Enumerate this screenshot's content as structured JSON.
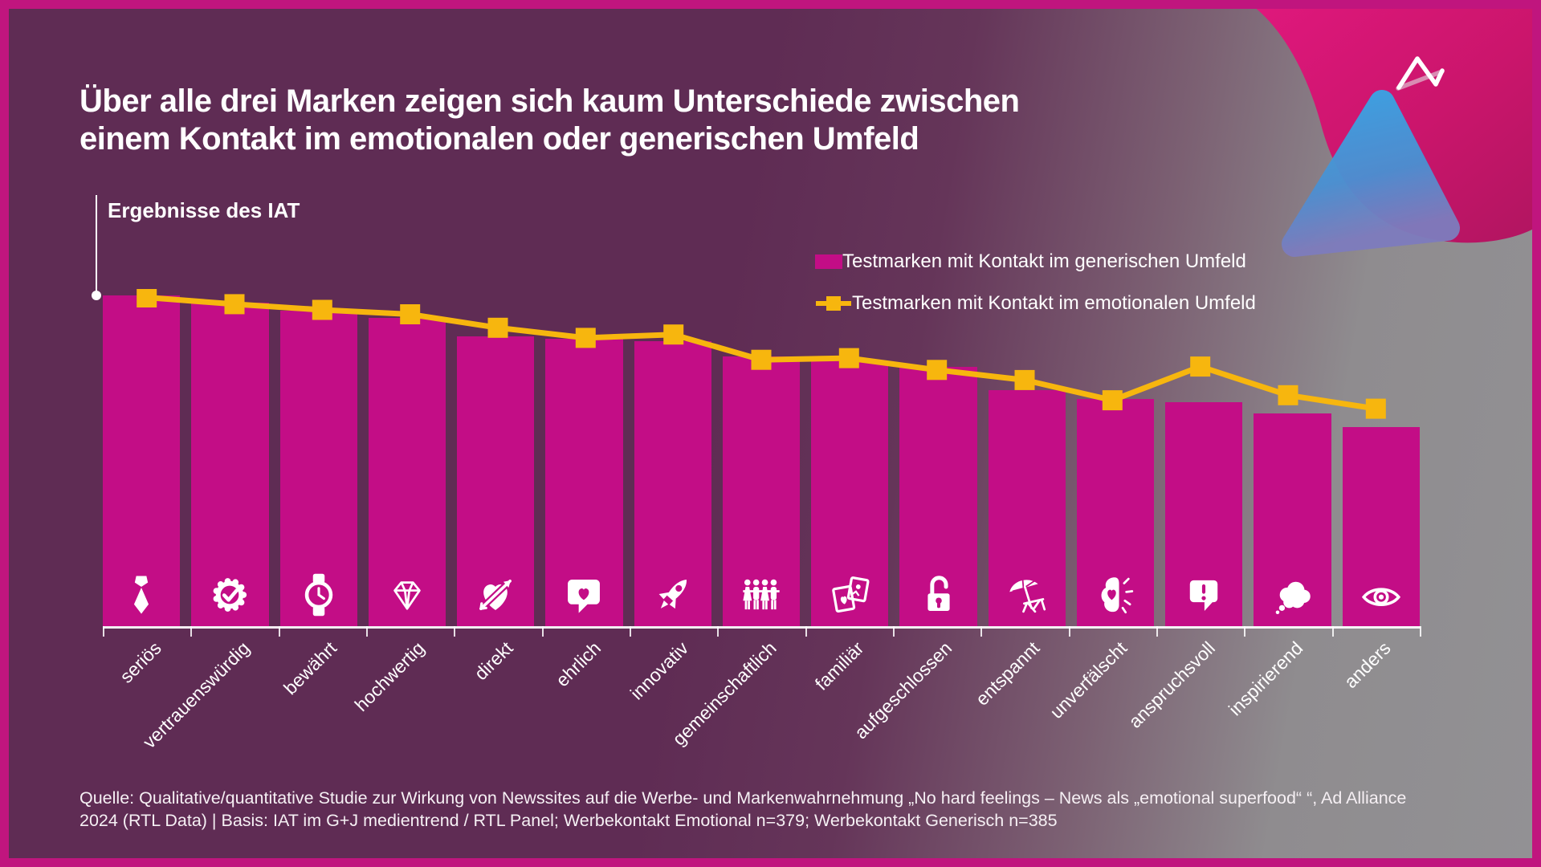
{
  "slide": {
    "title_line1": "Über alle drei Marken zeigen sich kaum Unterschiede zwischen",
    "title_line2": "einem Kontakt im emotionalen oder generischen Umfeld",
    "chart_heading": "Ergebnisse des IAT",
    "source_line1": "Quelle: Qualitative/quantitative Studie zur Wirkung von Newssites auf die Werbe- und Markenwahrnehmung „No hard feelings – News als „emotional superfood“ “, Ad Alliance",
    "source_line2": "2024 (RTL Data)  | Basis: IAT im G+J medientrend / RTL Panel; Werbekontakt Emotional n=379; Werbekontakt Generisch n=385"
  },
  "legend": [
    {
      "label": "Testmarken mit Kontakt im generischen Umfeld",
      "type": "bar",
      "color": "#c30d86"
    },
    {
      "label": "Testmarken mit Kontakt im emotionalen Umfeld",
      "type": "line",
      "color": "#f7b60e"
    }
  ],
  "colors": {
    "bar_magenta": "#c30d86",
    "line_yellow": "#f7b60e",
    "frame_pink": "#c0157e",
    "background_purple": "#5f2c54",
    "background_gray": "#929194",
    "text_white": "#ffffff",
    "corner_blob_pink": "#d01670",
    "corner_triangle_blue": "#3aa4e2"
  },
  "chart_data": {
    "type": "bar",
    "note": "No numeric axis shown in original; values are relative heights in % of the tallest bar (read from pixels).",
    "categories": [
      "seriös",
      "vertrauenswürdig",
      "bewährt",
      "hochwertig",
      "direkt",
      "ehrlich",
      "innovativ",
      "gemeinschaftlich",
      "familiär",
      "aufgeschlossen",
      "entspannt",
      "unverfälscht",
      "anspruchsvoll",
      "inspirierend",
      "anders"
    ],
    "icons": [
      "tie-icon",
      "seal-check-icon",
      "watch-icon",
      "diamond-icon",
      "heart-arrow-icon",
      "speech-heart-icon",
      "rocket-icon",
      "people-icon",
      "photos-icon",
      "open-lock-icon",
      "beach-icon",
      "brain-heart-icon",
      "speech-exclamation-icon",
      "thought-cloud-icon",
      "eye-icon"
    ],
    "series": [
      {
        "name": "Testmarken mit Kontakt im generischen Umfeld",
        "type": "bar",
        "values": [
          98,
          96,
          93.5,
          91.5,
          86,
          85.3,
          84.5,
          80,
          78.5,
          77,
          70,
          67.5,
          66.5,
          63,
          59
        ]
      },
      {
        "name": "Testmarken mit Kontakt im emotionalen Umfeld",
        "type": "line",
        "values": [
          97.5,
          95.5,
          93.8,
          92.5,
          88.5,
          85.5,
          86.5,
          79,
          79.5,
          76,
          73,
          67,
          77,
          68.5,
          64.5
        ]
      }
    ],
    "legend_position": "top-right",
    "grid": false
  }
}
